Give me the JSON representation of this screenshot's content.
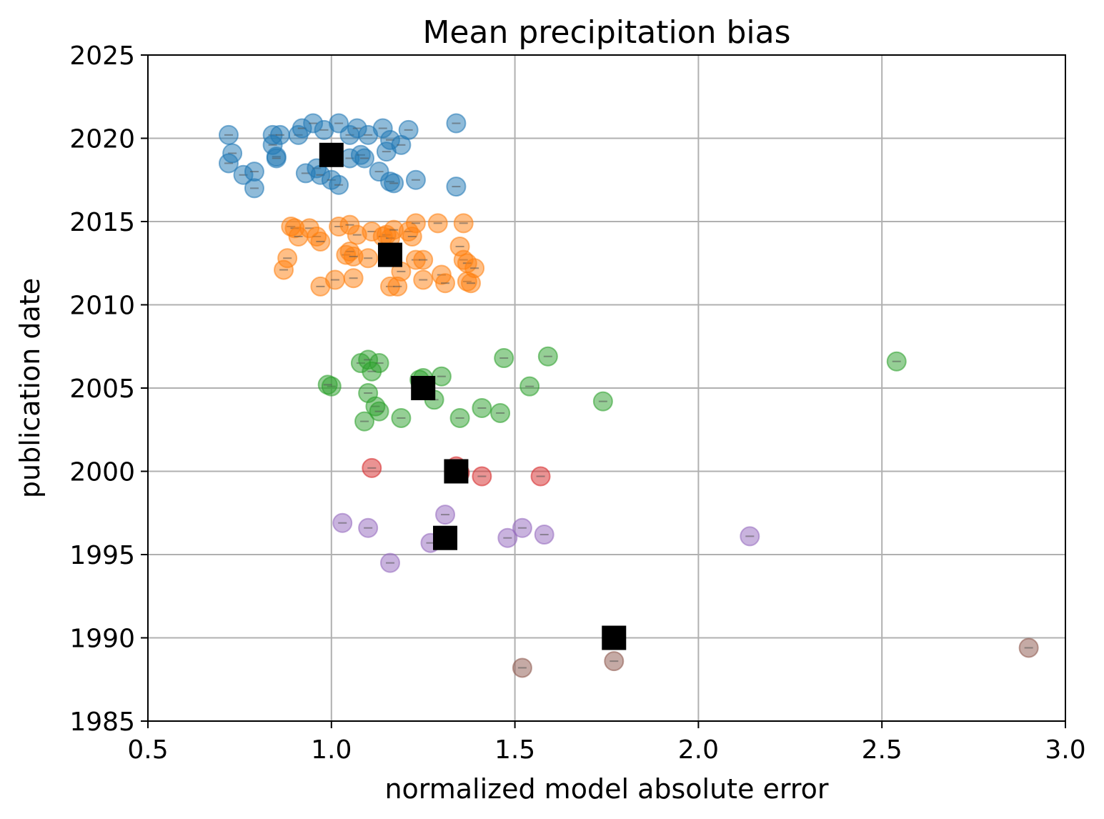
{
  "chart_data": {
    "type": "scatter",
    "title": "Mean precipitation bias",
    "xlabel": "normalized model absolute error",
    "ylabel": "publication date",
    "xlim": [
      0.5,
      3.0
    ],
    "ylim": [
      1985,
      2025
    ],
    "xticks": [
      "0.5",
      "1.0",
      "1.5",
      "2.0",
      "2.5",
      "3.0"
    ],
    "yticks": [
      "1985",
      "1990",
      "1995",
      "2000",
      "2005",
      "2010",
      "2015",
      "2020",
      "2025"
    ],
    "grid": true,
    "series": [
      {
        "color": "#1f77b4",
        "points": [
          [
            0.72,
            2020.2
          ],
          [
            0.73,
            2019.1
          ],
          [
            0.72,
            2018.5
          ],
          [
            0.76,
            2017.8
          ],
          [
            0.79,
            2018.0
          ],
          [
            0.79,
            2017.0
          ],
          [
            0.84,
            2020.2
          ],
          [
            0.86,
            2020.2
          ],
          [
            0.84,
            2019.6
          ],
          [
            0.85,
            2018.9
          ],
          [
            0.85,
            2018.8
          ],
          [
            0.91,
            2020.2
          ],
          [
            0.92,
            2020.6
          ],
          [
            0.95,
            2020.9
          ],
          [
            0.98,
            2020.5
          ],
          [
            0.93,
            2017.9
          ],
          [
            0.96,
            2018.2
          ],
          [
            0.97,
            2017.8
          ],
          [
            1.0,
            2017.5
          ],
          [
            1.02,
            2017.2
          ],
          [
            1.02,
            2020.9
          ],
          [
            1.05,
            2018.8
          ],
          [
            1.05,
            2020.2
          ],
          [
            1.07,
            2020.6
          ],
          [
            1.1,
            2020.2
          ],
          [
            1.08,
            2019.0
          ],
          [
            1.09,
            2018.8
          ],
          [
            1.13,
            2018.0
          ],
          [
            1.14,
            2020.6
          ],
          [
            1.15,
            2019.2
          ],
          [
            1.16,
            2019.9
          ],
          [
            1.16,
            2017.4
          ],
          [
            1.17,
            2017.3
          ],
          [
            1.19,
            2019.6
          ],
          [
            1.21,
            2020.5
          ],
          [
            1.23,
            2017.5
          ],
          [
            1.34,
            2020.9
          ],
          [
            1.34,
            2017.1
          ]
        ]
      },
      {
        "color": "#ff7f0e",
        "points": [
          [
            0.89,
            2014.7
          ],
          [
            0.9,
            2014.6
          ],
          [
            0.91,
            2014.1
          ],
          [
            0.94,
            2014.6
          ],
          [
            0.96,
            2014.1
          ],
          [
            0.97,
            2013.8
          ],
          [
            0.88,
            2012.8
          ],
          [
            0.87,
            2012.1
          ],
          [
            0.97,
            2011.1
          ],
          [
            1.01,
            2011.5
          ],
          [
            1.02,
            2014.7
          ],
          [
            1.04,
            2013.0
          ],
          [
            1.05,
            2013.2
          ],
          [
            1.06,
            2012.9
          ],
          [
            1.05,
            2014.8
          ],
          [
            1.07,
            2014.2
          ],
          [
            1.11,
            2014.4
          ],
          [
            1.1,
            2012.8
          ],
          [
            1.06,
            2011.6
          ],
          [
            1.14,
            2014.1
          ],
          [
            1.15,
            2014.2
          ],
          [
            1.16,
            2014.0
          ],
          [
            1.17,
            2014.5
          ],
          [
            1.16,
            2011.1
          ],
          [
            1.18,
            2011.1
          ],
          [
            1.19,
            2012.0
          ],
          [
            1.21,
            2014.4
          ],
          [
            1.22,
            2014.1
          ],
          [
            1.23,
            2012.7
          ],
          [
            1.23,
            2014.9
          ],
          [
            1.25,
            2012.7
          ],
          [
            1.25,
            2011.5
          ],
          [
            1.29,
            2014.9
          ],
          [
            1.3,
            2011.8
          ],
          [
            1.31,
            2011.3
          ],
          [
            1.35,
            2013.5
          ],
          [
            1.36,
            2014.9
          ],
          [
            1.36,
            2012.7
          ],
          [
            1.37,
            2012.5
          ],
          [
            1.37,
            2011.4
          ],
          [
            1.38,
            2011.3
          ],
          [
            1.39,
            2012.2
          ]
        ]
      },
      {
        "color": "#2ca02c",
        "points": [
          [
            1.0,
            2005.1
          ],
          [
            0.99,
            2005.2
          ],
          [
            1.08,
            2006.5
          ],
          [
            1.1,
            2006.7
          ],
          [
            1.13,
            2006.5
          ],
          [
            1.11,
            2006.0
          ],
          [
            1.1,
            2004.7
          ],
          [
            1.12,
            2003.9
          ],
          [
            1.13,
            2003.6
          ],
          [
            1.09,
            2003.0
          ],
          [
            1.19,
            2003.2
          ],
          [
            1.24,
            2005.5
          ],
          [
            1.25,
            2005.6
          ],
          [
            1.28,
            2004.3
          ],
          [
            1.3,
            2005.7
          ],
          [
            1.35,
            2003.2
          ],
          [
            1.41,
            2003.8
          ],
          [
            1.46,
            2003.5
          ],
          [
            1.47,
            2006.8
          ],
          [
            1.54,
            2005.1
          ],
          [
            1.59,
            2006.9
          ],
          [
            1.74,
            2004.2
          ],
          [
            2.54,
            2006.6
          ]
        ]
      },
      {
        "color": "#d62728",
        "points": [
          [
            1.11,
            2000.2
          ],
          [
            1.34,
            2000.3
          ],
          [
            1.35,
            1999.9
          ],
          [
            1.41,
            1999.7
          ],
          [
            1.57,
            1999.7
          ]
        ]
      },
      {
        "color": "#9467bd",
        "points": [
          [
            1.03,
            1996.9
          ],
          [
            1.1,
            1996.6
          ],
          [
            1.16,
            1994.5
          ],
          [
            1.27,
            1995.7
          ],
          [
            1.31,
            1997.4
          ],
          [
            1.48,
            1996.0
          ],
          [
            1.52,
            1996.6
          ],
          [
            1.58,
            1996.2
          ],
          [
            2.14,
            1996.1
          ]
        ]
      },
      {
        "color": "#8c564b",
        "points": [
          [
            1.52,
            1988.2
          ],
          [
            1.77,
            1988.6
          ],
          [
            2.9,
            1989.4
          ]
        ]
      }
    ],
    "means": {
      "color": "#000000",
      "points": [
        [
          1.0,
          2019.0
        ],
        [
          1.16,
          2013.0
        ],
        [
          1.25,
          2005.0
        ],
        [
          1.34,
          2000.0
        ],
        [
          1.31,
          1996.0
        ],
        [
          1.77,
          1990.0
        ]
      ]
    }
  }
}
